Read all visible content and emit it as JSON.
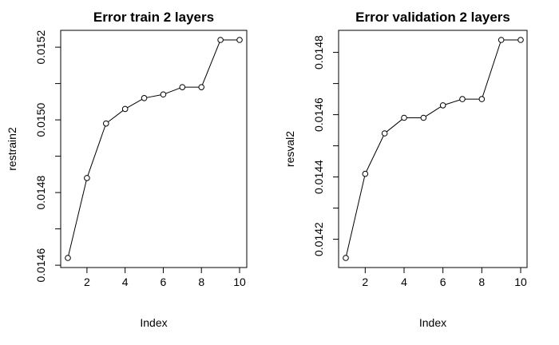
{
  "chart_data": [
    {
      "type": "line",
      "title": "Error train 2 layers",
      "xlabel": "Index",
      "ylabel": "restrain2",
      "x": [
        1,
        2,
        3,
        4,
        5,
        6,
        7,
        8,
        9,
        10
      ],
      "series": [
        {
          "values": [
            0.01462,
            0.01484,
            0.01499,
            0.01503,
            0.01506,
            0.01507,
            0.01509,
            0.01509,
            0.01522,
            0.01522
          ]
        }
      ],
      "xlim": [
        1,
        10
      ],
      "ylim": [
        0.01462,
        0.01522
      ],
      "xticks": [
        2,
        4,
        6,
        8,
        10
      ],
      "xtick_labels": [
        "2",
        "4",
        "6",
        "8",
        "10"
      ],
      "yticks": [
        0.0146,
        0.0147,
        0.0148,
        0.0149,
        0.015,
        0.0151,
        0.0152
      ],
      "ytick_labels": [
        "0.0146",
        "",
        "0.0148",
        "",
        "0.0150",
        "",
        "0.0152"
      ],
      "grid": false,
      "marker": "open-circle",
      "line_color": "#000000"
    },
    {
      "type": "line",
      "title": "Error validation 2 layers",
      "xlabel": "Index",
      "ylabel": "resval2",
      "x": [
        1,
        2,
        3,
        4,
        5,
        6,
        7,
        8,
        9,
        10
      ],
      "series": [
        {
          "values": [
            0.01414,
            0.01441,
            0.01454,
            0.01459,
            0.01459,
            0.01463,
            0.01465,
            0.01465,
            0.01484,
            0.01484
          ]
        }
      ],
      "xlim": [
        1,
        10
      ],
      "ylim": [
        0.01414,
        0.01484
      ],
      "xticks": [
        2,
        4,
        6,
        8,
        10
      ],
      "xtick_labels": [
        "2",
        "4",
        "6",
        "8",
        "10"
      ],
      "yticks": [
        0.0142,
        0.0143,
        0.0144,
        0.0145,
        0.0146,
        0.0147,
        0.0148
      ],
      "ytick_labels": [
        "0.0142",
        "",
        "0.0144",
        "",
        "0.0146",
        "",
        "0.0148"
      ],
      "grid": false,
      "marker": "open-circle",
      "line_color": "#000000"
    }
  ]
}
